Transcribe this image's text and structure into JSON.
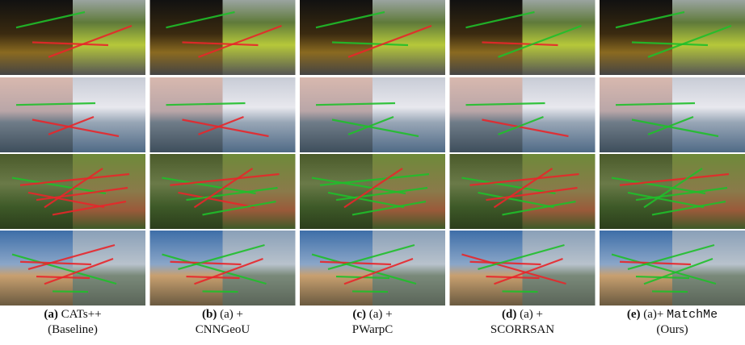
{
  "captions": [
    {
      "label": "(a)",
      "line1": "CATs++",
      "line2": "(Baseline)"
    },
    {
      "label": "(b)",
      "line1": "(a) +",
      "line2": "CNNGeoU"
    },
    {
      "label": "(c)",
      "line1": "(a) +",
      "line2": "PWarpC"
    },
    {
      "label": "(d)",
      "line1": "(a) +",
      "line2": "SCORRSAN"
    },
    {
      "label": "(e)",
      "line1": "(a)+",
      "code": "MatchMe",
      "line2": "(Ours)"
    }
  ]
}
